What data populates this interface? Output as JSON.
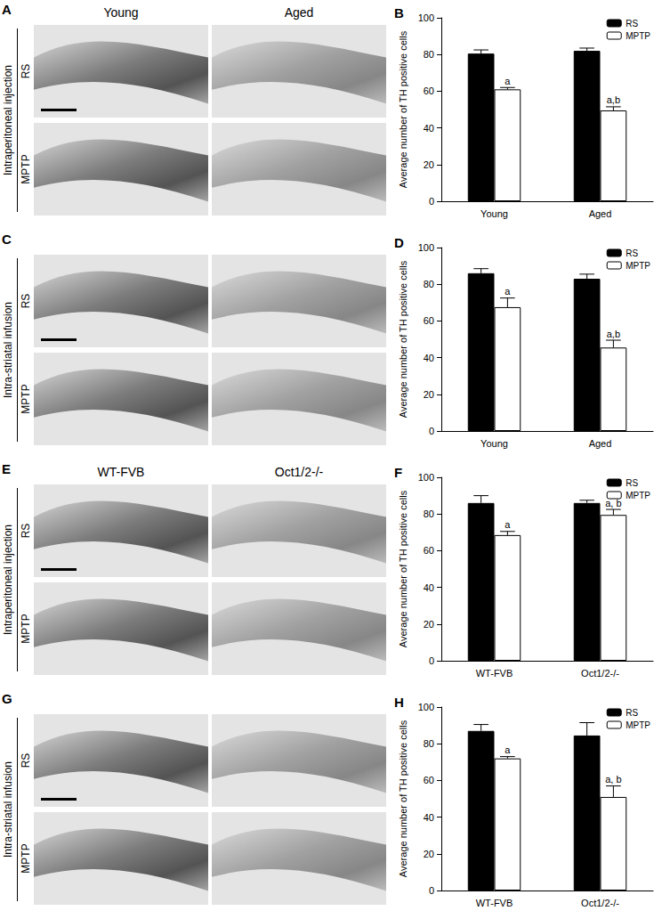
{
  "chart_data": [
    {
      "type": "bar",
      "title": "B",
      "ylabel": "Average number of TH positive cells",
      "categories": [
        "Young",
        "Aged"
      ],
      "series": [
        {
          "name": "RS",
          "color": "#000000",
          "values": [
            80.5,
            82
          ],
          "errors": [
            2,
            1.5
          ]
        },
        {
          "name": "MPTP",
          "color": "#ffffff",
          "values": [
            61,
            49.5
          ],
          "errors": [
            1,
            2
          ],
          "annotations": [
            "a",
            "a,b"
          ]
        }
      ],
      "ylim": [
        0,
        100
      ],
      "yticks": [
        0,
        20,
        40,
        60,
        80,
        100
      ],
      "legend": "upper right",
      "grid": false
    },
    {
      "type": "bar",
      "title": "D",
      "ylabel": "Average number of TH positive cells",
      "categories": [
        "Young",
        "Aged"
      ],
      "series": [
        {
          "name": "RS",
          "color": "#000000",
          "values": [
            86,
            83
          ],
          "errors": [
            2.5,
            2.5
          ]
        },
        {
          "name": "MPTP",
          "color": "#ffffff",
          "values": [
            67.5,
            45.5
          ],
          "errors": [
            5,
            4
          ],
          "annotations": [
            "a",
            "a,b"
          ]
        }
      ],
      "ylim": [
        0,
        100
      ],
      "yticks": [
        0,
        20,
        40,
        60,
        80,
        100
      ],
      "legend": "upper right",
      "grid": false
    },
    {
      "type": "bar",
      "title": "F",
      "ylabel": "Average number of TH positive cells",
      "categories": [
        "WT-FVB",
        "Oct1/2-/-"
      ],
      "series": [
        {
          "name": "RS",
          "color": "#000000",
          "values": [
            86,
            86
          ],
          "errors": [
            4,
            1.5
          ]
        },
        {
          "name": "MPTP",
          "color": "#ffffff",
          "values": [
            68.5,
            79.5
          ],
          "errors": [
            2,
            3
          ],
          "annotations": [
            "a",
            "a, b"
          ]
        }
      ],
      "ylim": [
        0,
        100
      ],
      "yticks": [
        0,
        20,
        40,
        60,
        80,
        100
      ],
      "legend": "upper right",
      "grid": false
    },
    {
      "type": "bar",
      "title": "H",
      "ylabel": "Average number of TH positive cells",
      "categories": [
        "WT-FVB",
        "Oct1/2-/-"
      ],
      "series": [
        {
          "name": "RS",
          "color": "#000000",
          "values": [
            87,
            84.5
          ],
          "errors": [
            3.5,
            7
          ]
        },
        {
          "name": "MPTP",
          "color": "#ffffff",
          "values": [
            72,
            51
          ],
          "errors": [
            1,
            6
          ],
          "annotations": [
            "a",
            "a, b"
          ]
        }
      ],
      "ylim": [
        0,
        100
      ],
      "yticks": [
        0,
        20,
        40,
        60,
        80,
        100
      ],
      "legend": "upper right",
      "grid": false
    }
  ],
  "image_panels": [
    {
      "label": "A",
      "columns": [
        "Young",
        "Aged"
      ],
      "group": "Intraperitoneal injection",
      "rows": [
        "RS",
        "MPTP"
      ]
    },
    {
      "label": "C",
      "group": "Intra-striatal infusion",
      "rows": [
        "RS",
        "MPTP"
      ]
    },
    {
      "label": "E",
      "columns": [
        "WT-FVB",
        "Oct1/2-/-"
      ],
      "group": "Intraperitoneal injection",
      "rows": [
        "RS",
        "MPTP"
      ]
    },
    {
      "label": "G",
      "group": "Intra-striatal infusion",
      "rows": [
        "RS",
        "MPTP"
      ]
    }
  ]
}
